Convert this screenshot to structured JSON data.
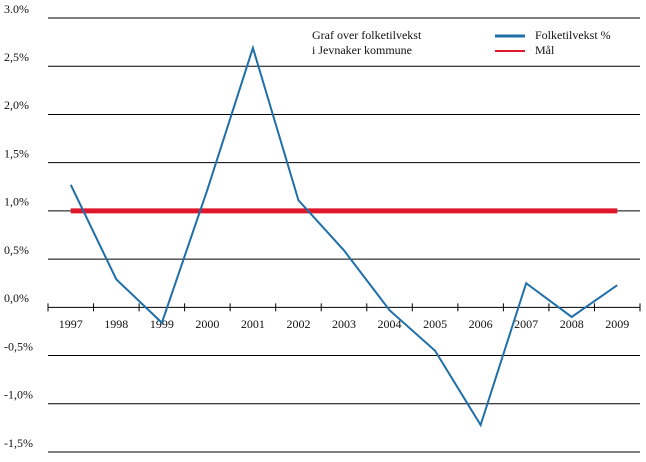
{
  "chart_data": {
    "type": "line",
    "annotation": [
      "Graf over folketilvekst",
      "i Jevnaker kommune"
    ],
    "categories": [
      "1997",
      "1998",
      "1999",
      "2000",
      "2001",
      "2002",
      "2003",
      "2004",
      "2005",
      "2006",
      "2007",
      "2008",
      "2009"
    ],
    "series": [
      {
        "name": "Folketilvekst %",
        "color": "#1f6fa8",
        "values": [
          1.27,
          0.29,
          -0.16,
          1.22,
          2.69,
          1.11,
          0.59,
          -0.03,
          -0.45,
          -1.22,
          0.25,
          -0.1,
          0.23
        ]
      },
      {
        "name": "Mål",
        "color": "#e0162b",
        "values": [
          1,
          1,
          1,
          1,
          1,
          1,
          1,
          1,
          1,
          1,
          1,
          1,
          1
        ]
      }
    ],
    "ylim": [
      -1.5,
      3.0
    ],
    "yticks": [
      {
        "value": -1.5,
        "label": "-1,5%"
      },
      {
        "value": -1.0,
        "label": "-1,0%"
      },
      {
        "value": -0.5,
        "label": "-0,5%"
      },
      {
        "value": 0,
        "label": "0,0%"
      },
      {
        "value": 0.5,
        "label": "0,5%"
      },
      {
        "value": 1.0,
        "label": "1,0%"
      },
      {
        "value": 1.5,
        "label": "1,5%"
      },
      {
        "value": 2.0,
        "label": "2,0%"
      },
      {
        "value": 2.5,
        "label": "2,5%"
      },
      {
        "value": 3.0,
        "label": "3.0%"
      }
    ],
    "grid": true
  }
}
